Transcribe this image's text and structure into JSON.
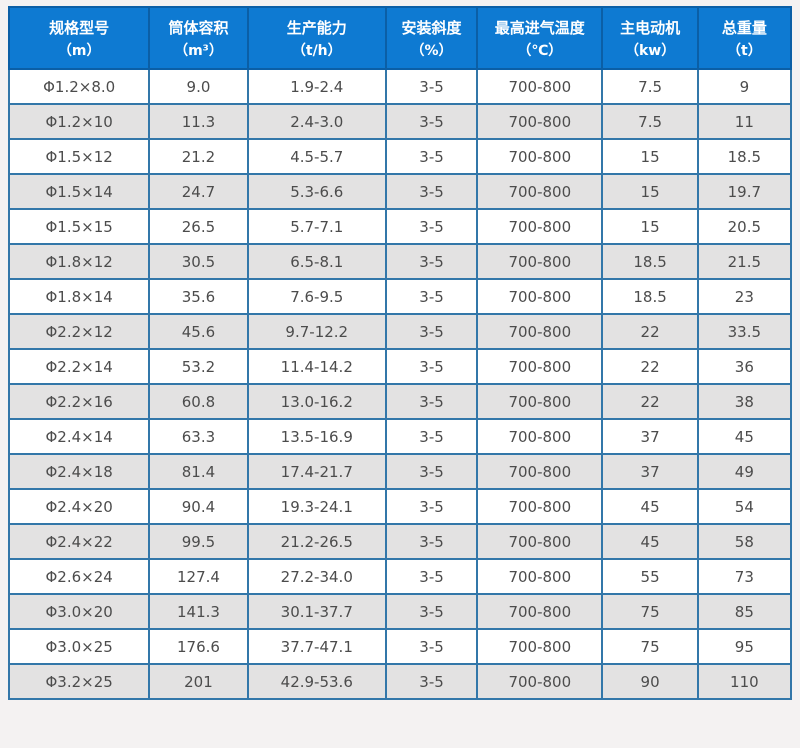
{
  "colors": {
    "page_bg": "#f4f2f2",
    "header_bg": "#0e7ad2",
    "header_border": "#0b5fa6",
    "cell_border": "#3377a9",
    "outer_border": "#15619e",
    "alt_row_bg": "#e3e2e2",
    "row_bg": "#ffffff",
    "header_text": "#ffffff",
    "cell_text": "#4c4c4c"
  },
  "table": {
    "columns": [
      {
        "label": "规格型号",
        "unit": "（m）"
      },
      {
        "label": "筒体容积",
        "unit": "（m³）"
      },
      {
        "label": "生产能力",
        "unit": "（t/h）"
      },
      {
        "label": "安装斜度",
        "unit": "（%）"
      },
      {
        "label": "最高进气温度",
        "unit": "（℃）"
      },
      {
        "label": "主电动机",
        "unit": "（kw）"
      },
      {
        "label": "总重量",
        "unit": "（t）"
      }
    ],
    "rows": [
      [
        "Φ1.2×8.0",
        "9.0",
        "1.9-2.4",
        "3-5",
        "700-800",
        "7.5",
        "9"
      ],
      [
        "Φ1.2×10",
        "11.3",
        "2.4-3.0",
        "3-5",
        "700-800",
        "7.5",
        "11"
      ],
      [
        "Φ1.5×12",
        "21.2",
        "4.5-5.7",
        "3-5",
        "700-800",
        "15",
        "18.5"
      ],
      [
        "Φ1.5×14",
        "24.7",
        "5.3-6.6",
        "3-5",
        "700-800",
        "15",
        "19.7"
      ],
      [
        "Φ1.5×15",
        "26.5",
        "5.7-7.1",
        "3-5",
        "700-800",
        "15",
        "20.5"
      ],
      [
        "Φ1.8×12",
        "30.5",
        "6.5-8.1",
        "3-5",
        "700-800",
        "18.5",
        "21.5"
      ],
      [
        "Φ1.8×14",
        "35.6",
        "7.6-9.5",
        "3-5",
        "700-800",
        "18.5",
        "23"
      ],
      [
        "Φ2.2×12",
        "45.6",
        "9.7-12.2",
        "3-5",
        "700-800",
        "22",
        "33.5"
      ],
      [
        "Φ2.2×14",
        "53.2",
        "11.4-14.2",
        "3-5",
        "700-800",
        "22",
        "36"
      ],
      [
        "Φ2.2×16",
        "60.8",
        "13.0-16.2",
        "3-5",
        "700-800",
        "22",
        "38"
      ],
      [
        "Φ2.4×14",
        "63.3",
        "13.5-16.9",
        "3-5",
        "700-800",
        "37",
        "45"
      ],
      [
        "Φ2.4×18",
        "81.4",
        "17.4-21.7",
        "3-5",
        "700-800",
        "37",
        "49"
      ],
      [
        "Φ2.4×20",
        "90.4",
        "19.3-24.1",
        "3-5",
        "700-800",
        "45",
        "54"
      ],
      [
        "Φ2.4×22",
        "99.5",
        "21.2-26.5",
        "3-5",
        "700-800",
        "45",
        "58"
      ],
      [
        "Φ2.6×24",
        "127.4",
        "27.2-34.0",
        "3-5",
        "700-800",
        "55",
        "73"
      ],
      [
        "Φ3.0×20",
        "141.3",
        "30.1-37.7",
        "3-5",
        "700-800",
        "75",
        "85"
      ],
      [
        "Φ3.0×25",
        "176.6",
        "37.7-47.1",
        "3-5",
        "700-800",
        "75",
        "95"
      ],
      [
        "Φ3.2×25",
        "201",
        "42.9-53.6",
        "3-5",
        "700-800",
        "90",
        "110"
      ]
    ]
  },
  "chart_data": {
    "type": "table",
    "title": "",
    "columns": [
      "规格型号（m）",
      "筒体容积（m³）",
      "生产能力（t/h）",
      "安装斜度（%）",
      "最高进气温度（℃）",
      "主电动机（kw）",
      "总重量（t）"
    ],
    "rows": [
      [
        "Φ1.2×8.0",
        "9.0",
        "1.9-2.4",
        "3-5",
        "700-800",
        "7.5",
        "9"
      ],
      [
        "Φ1.2×10",
        "11.3",
        "2.4-3.0",
        "3-5",
        "700-800",
        "7.5",
        "11"
      ],
      [
        "Φ1.5×12",
        "21.2",
        "4.5-5.7",
        "3-5",
        "700-800",
        "15",
        "18.5"
      ],
      [
        "Φ1.5×14",
        "24.7",
        "5.3-6.6",
        "3-5",
        "700-800",
        "15",
        "19.7"
      ],
      [
        "Φ1.5×15",
        "26.5",
        "5.7-7.1",
        "3-5",
        "700-800",
        "15",
        "20.5"
      ],
      [
        "Φ1.8×12",
        "30.5",
        "6.5-8.1",
        "3-5",
        "700-800",
        "18.5",
        "21.5"
      ],
      [
        "Φ1.8×14",
        "35.6",
        "7.6-9.5",
        "3-5",
        "700-800",
        "18.5",
        "23"
      ],
      [
        "Φ2.2×12",
        "45.6",
        "9.7-12.2",
        "3-5",
        "700-800",
        "22",
        "33.5"
      ],
      [
        "Φ2.2×14",
        "53.2",
        "11.4-14.2",
        "3-5",
        "700-800",
        "22",
        "36"
      ],
      [
        "Φ2.2×16",
        "60.8",
        "13.0-16.2",
        "3-5",
        "700-800",
        "22",
        "38"
      ],
      [
        "Φ2.4×14",
        "63.3",
        "13.5-16.9",
        "3-5",
        "700-800",
        "37",
        "45"
      ],
      [
        "Φ2.4×18",
        "81.4",
        "17.4-21.7",
        "3-5",
        "700-800",
        "37",
        "49"
      ],
      [
        "Φ2.4×20",
        "90.4",
        "19.3-24.1",
        "3-5",
        "700-800",
        "45",
        "54"
      ],
      [
        "Φ2.4×22",
        "99.5",
        "21.2-26.5",
        "3-5",
        "700-800",
        "45",
        "58"
      ],
      [
        "Φ2.6×24",
        "127.4",
        "27.2-34.0",
        "3-5",
        "700-800",
        "55",
        "73"
      ],
      [
        "Φ3.0×20",
        "141.3",
        "30.1-37.7",
        "3-5",
        "700-800",
        "75",
        "85"
      ],
      [
        "Φ3.0×25",
        "176.6",
        "37.7-47.1",
        "3-5",
        "700-800",
        "75",
        "95"
      ],
      [
        "Φ3.2×25",
        "201",
        "42.9-53.6",
        "3-5",
        "700-800",
        "90",
        "110"
      ]
    ]
  }
}
